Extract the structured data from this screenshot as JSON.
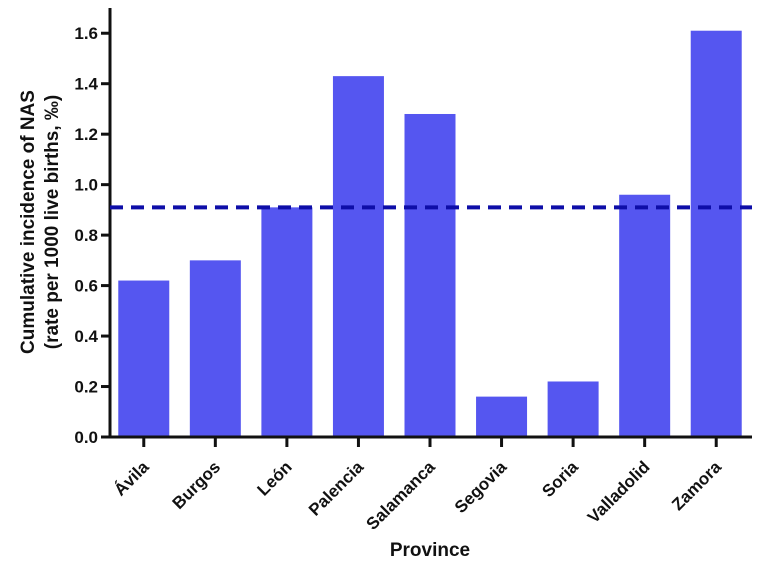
{
  "chart_data": {
    "type": "bar",
    "title": "",
    "xlabel": "Province",
    "ylabel_lines": [
      "Cumulative incidence of NAS",
      "(rate per 1000 live births, ‰)"
    ],
    "categories": [
      "Ávila",
      "Burgos",
      "León",
      "Palencia",
      "Salamanca",
      "Segovia",
      "Soria",
      "Valladolid",
      "Zamora"
    ],
    "values": [
      0.62,
      0.7,
      0.91,
      1.43,
      1.28,
      0.16,
      0.22,
      0.96,
      1.61
    ],
    "yticks": [
      0.0,
      0.2,
      0.4,
      0.6,
      0.8,
      1.0,
      1.2,
      1.4,
      1.6
    ],
    "ytick_labels": [
      "0.0",
      "0.2",
      "0.4",
      "0.6",
      "0.8",
      "1.0",
      "1.2",
      "1.4",
      "1.6"
    ],
    "ylim": [
      0,
      1.7
    ],
    "grid": false,
    "legend": null,
    "reference_line": {
      "value": 0.91,
      "style": "dashed"
    },
    "colors": {
      "bar": "#5556F0",
      "reference": "#0E0EA8",
      "axis": "#111111",
      "text": "#111111",
      "background": "#FFFFFF"
    }
  }
}
